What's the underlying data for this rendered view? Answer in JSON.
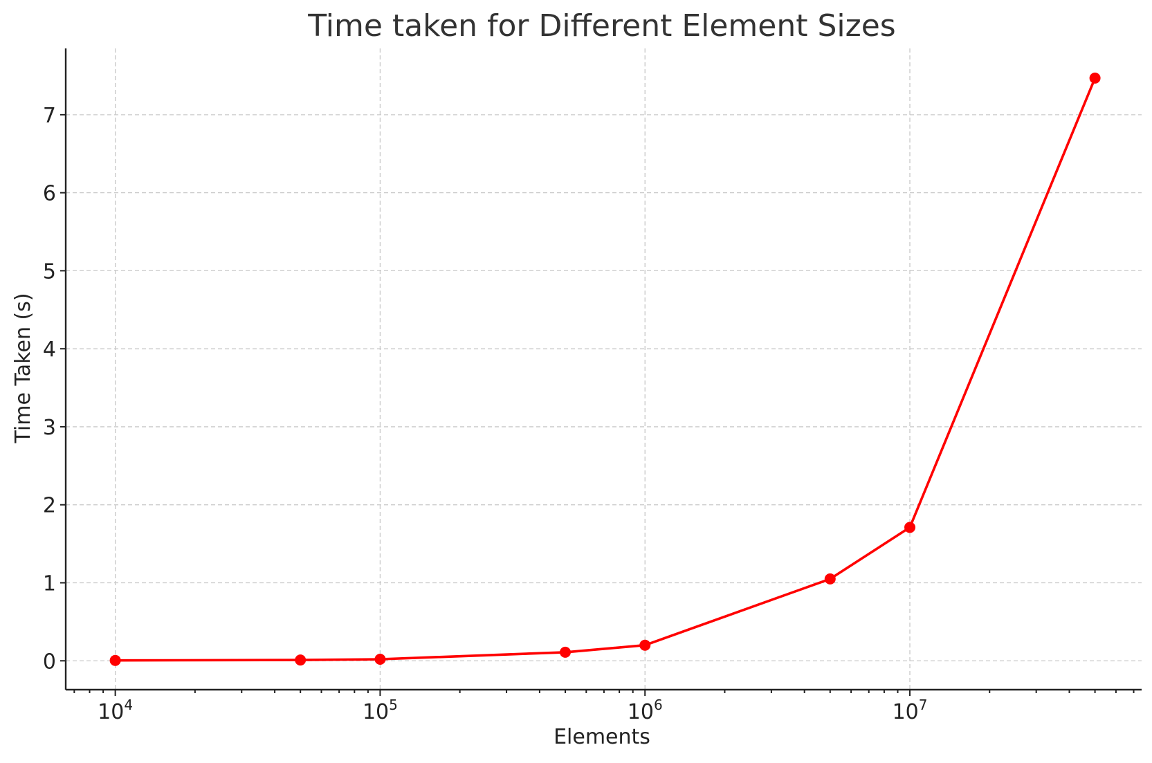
{
  "chart_data": {
    "type": "line",
    "title": "Time taken for Different Element Sizes",
    "xlabel": "Elements",
    "ylabel": "Time Taken (s)",
    "xscale": "log",
    "xlim": [
      6500,
      75000000
    ],
    "ylim": [
      -0.37,
      7.85
    ],
    "grid": true,
    "x_ticks": [
      {
        "value": 10000,
        "base": "10",
        "exp": "4"
      },
      {
        "value": 100000,
        "base": "10",
        "exp": "5"
      },
      {
        "value": 1000000,
        "base": "10",
        "exp": "6"
      },
      {
        "value": 10000000,
        "base": "10",
        "exp": "7"
      }
    ],
    "y_ticks": [
      0,
      1,
      2,
      3,
      4,
      5,
      6,
      7
    ],
    "color": "#ff0000",
    "series": [
      {
        "x": [
          10000,
          50000,
          100000,
          500000,
          1000000,
          5000000,
          10000000,
          50000000
        ],
        "y": [
          0.005,
          0.01,
          0.02,
          0.11,
          0.2,
          1.05,
          1.71,
          7.47
        ]
      }
    ]
  }
}
